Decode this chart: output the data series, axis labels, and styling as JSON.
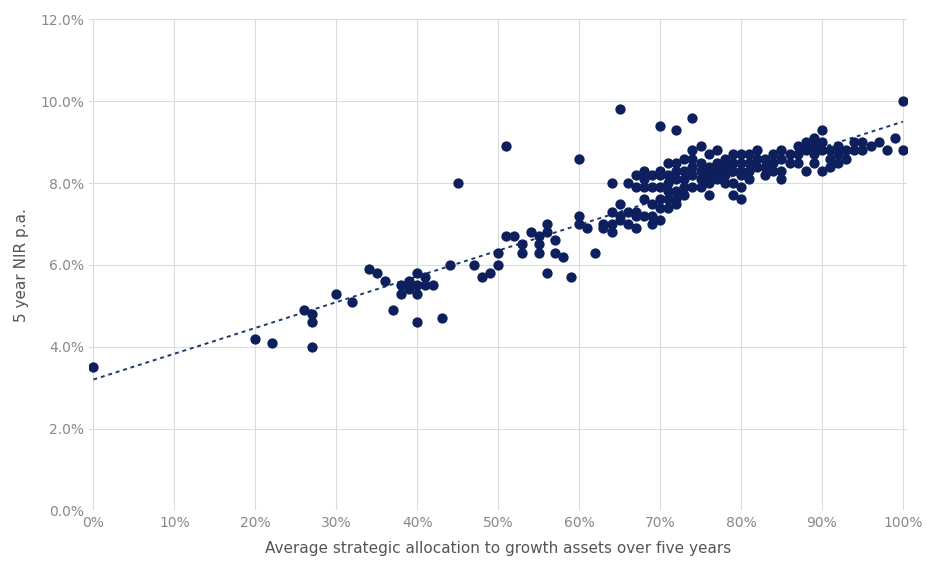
{
  "scatter_points": [
    [
      0.0,
      0.035
    ],
    [
      0.2,
      0.042
    ],
    [
      0.22,
      0.041
    ],
    [
      0.26,
      0.049
    ],
    [
      0.27,
      0.048
    ],
    [
      0.27,
      0.046
    ],
    [
      0.27,
      0.04
    ],
    [
      0.3,
      0.053
    ],
    [
      0.32,
      0.051
    ],
    [
      0.34,
      0.059
    ],
    [
      0.35,
      0.058
    ],
    [
      0.36,
      0.056
    ],
    [
      0.37,
      0.049
    ],
    [
      0.38,
      0.055
    ],
    [
      0.38,
      0.053
    ],
    [
      0.39,
      0.056
    ],
    [
      0.39,
      0.054
    ],
    [
      0.4,
      0.058
    ],
    [
      0.4,
      0.055
    ],
    [
      0.4,
      0.053
    ],
    [
      0.4,
      0.046
    ],
    [
      0.41,
      0.055
    ],
    [
      0.41,
      0.057
    ],
    [
      0.42,
      0.055
    ],
    [
      0.43,
      0.047
    ],
    [
      0.44,
      0.06
    ],
    [
      0.45,
      0.08
    ],
    [
      0.47,
      0.06
    ],
    [
      0.48,
      0.057
    ],
    [
      0.49,
      0.058
    ],
    [
      0.5,
      0.063
    ],
    [
      0.5,
      0.06
    ],
    [
      0.51,
      0.089
    ],
    [
      0.51,
      0.067
    ],
    [
      0.52,
      0.067
    ],
    [
      0.53,
      0.065
    ],
    [
      0.53,
      0.063
    ],
    [
      0.54,
      0.068
    ],
    [
      0.55,
      0.067
    ],
    [
      0.55,
      0.065
    ],
    [
      0.55,
      0.063
    ],
    [
      0.56,
      0.07
    ],
    [
      0.56,
      0.068
    ],
    [
      0.56,
      0.058
    ],
    [
      0.57,
      0.066
    ],
    [
      0.57,
      0.063
    ],
    [
      0.58,
      0.062
    ],
    [
      0.59,
      0.057
    ],
    [
      0.6,
      0.086
    ],
    [
      0.6,
      0.072
    ],
    [
      0.6,
      0.07
    ],
    [
      0.61,
      0.069
    ],
    [
      0.62,
      0.063
    ],
    [
      0.63,
      0.07
    ],
    [
      0.63,
      0.069
    ],
    [
      0.64,
      0.08
    ],
    [
      0.64,
      0.073
    ],
    [
      0.64,
      0.07
    ],
    [
      0.64,
      0.068
    ],
    [
      0.65,
      0.098
    ],
    [
      0.65,
      0.075
    ],
    [
      0.65,
      0.072
    ],
    [
      0.65,
      0.071
    ],
    [
      0.66,
      0.08
    ],
    [
      0.66,
      0.073
    ],
    [
      0.66,
      0.07
    ],
    [
      0.67,
      0.082
    ],
    [
      0.67,
      0.079
    ],
    [
      0.67,
      0.073
    ],
    [
      0.67,
      0.072
    ],
    [
      0.67,
      0.069
    ],
    [
      0.68,
      0.083
    ],
    [
      0.68,
      0.081
    ],
    [
      0.68,
      0.079
    ],
    [
      0.68,
      0.076
    ],
    [
      0.68,
      0.072
    ],
    [
      0.69,
      0.082
    ],
    [
      0.69,
      0.079
    ],
    [
      0.69,
      0.075
    ],
    [
      0.69,
      0.072
    ],
    [
      0.69,
      0.07
    ],
    [
      0.7,
      0.094
    ],
    [
      0.7,
      0.083
    ],
    [
      0.7,
      0.082
    ],
    [
      0.7,
      0.079
    ],
    [
      0.7,
      0.076
    ],
    [
      0.7,
      0.074
    ],
    [
      0.7,
      0.071
    ],
    [
      0.71,
      0.085
    ],
    [
      0.71,
      0.082
    ],
    [
      0.71,
      0.08
    ],
    [
      0.71,
      0.078
    ],
    [
      0.71,
      0.076
    ],
    [
      0.71,
      0.074
    ],
    [
      0.72,
      0.093
    ],
    [
      0.72,
      0.085
    ],
    [
      0.72,
      0.083
    ],
    [
      0.72,
      0.081
    ],
    [
      0.72,
      0.078
    ],
    [
      0.72,
      0.076
    ],
    [
      0.72,
      0.075
    ],
    [
      0.73,
      0.086
    ],
    [
      0.73,
      0.083
    ],
    [
      0.73,
      0.081
    ],
    [
      0.73,
      0.079
    ],
    [
      0.73,
      0.077
    ],
    [
      0.74,
      0.096
    ],
    [
      0.74,
      0.088
    ],
    [
      0.74,
      0.086
    ],
    [
      0.74,
      0.084
    ],
    [
      0.74,
      0.082
    ],
    [
      0.74,
      0.079
    ],
    [
      0.75,
      0.089
    ],
    [
      0.75,
      0.085
    ],
    [
      0.75,
      0.083
    ],
    [
      0.75,
      0.081
    ],
    [
      0.75,
      0.079
    ],
    [
      0.76,
      0.087
    ],
    [
      0.76,
      0.084
    ],
    [
      0.76,
      0.082
    ],
    [
      0.76,
      0.08
    ],
    [
      0.76,
      0.077
    ],
    [
      0.77,
      0.088
    ],
    [
      0.77,
      0.085
    ],
    [
      0.77,
      0.083
    ],
    [
      0.77,
      0.081
    ],
    [
      0.78,
      0.086
    ],
    [
      0.78,
      0.084
    ],
    [
      0.78,
      0.082
    ],
    [
      0.78,
      0.08
    ],
    [
      0.79,
      0.087
    ],
    [
      0.79,
      0.085
    ],
    [
      0.79,
      0.083
    ],
    [
      0.79,
      0.08
    ],
    [
      0.79,
      0.077
    ],
    [
      0.8,
      0.087
    ],
    [
      0.8,
      0.085
    ],
    [
      0.8,
      0.083
    ],
    [
      0.8,
      0.082
    ],
    [
      0.8,
      0.079
    ],
    [
      0.8,
      0.076
    ],
    [
      0.81,
      0.087
    ],
    [
      0.81,
      0.085
    ],
    [
      0.81,
      0.083
    ],
    [
      0.81,
      0.081
    ],
    [
      0.82,
      0.088
    ],
    [
      0.82,
      0.086
    ],
    [
      0.82,
      0.084
    ],
    [
      0.83,
      0.086
    ],
    [
      0.83,
      0.084
    ],
    [
      0.83,
      0.082
    ],
    [
      0.84,
      0.087
    ],
    [
      0.84,
      0.085
    ],
    [
      0.84,
      0.083
    ],
    [
      0.85,
      0.088
    ],
    [
      0.85,
      0.086
    ],
    [
      0.85,
      0.083
    ],
    [
      0.85,
      0.081
    ],
    [
      0.86,
      0.087
    ],
    [
      0.86,
      0.085
    ],
    [
      0.87,
      0.089
    ],
    [
      0.87,
      0.087
    ],
    [
      0.87,
      0.085
    ],
    [
      0.88,
      0.09
    ],
    [
      0.88,
      0.088
    ],
    [
      0.88,
      0.083
    ],
    [
      0.89,
      0.091
    ],
    [
      0.89,
      0.089
    ],
    [
      0.89,
      0.087
    ],
    [
      0.89,
      0.085
    ],
    [
      0.9,
      0.093
    ],
    [
      0.9,
      0.09
    ],
    [
      0.9,
      0.088
    ],
    [
      0.9,
      0.083
    ],
    [
      0.91,
      0.088
    ],
    [
      0.91,
      0.086
    ],
    [
      0.91,
      0.084
    ],
    [
      0.92,
      0.089
    ],
    [
      0.92,
      0.087
    ],
    [
      0.92,
      0.085
    ],
    [
      0.93,
      0.088
    ],
    [
      0.93,
      0.086
    ],
    [
      0.94,
      0.09
    ],
    [
      0.94,
      0.088
    ],
    [
      0.95,
      0.09
    ],
    [
      0.95,
      0.088
    ],
    [
      0.96,
      0.089
    ],
    [
      0.97,
      0.09
    ],
    [
      0.98,
      0.088
    ],
    [
      0.99,
      0.091
    ],
    [
      1.0,
      0.1
    ],
    [
      1.0,
      0.088
    ]
  ],
  "trend_x": [
    0.0,
    1.0
  ],
  "trend_y": [
    0.032,
    0.095
  ],
  "dot_color": "#0d1f5c",
  "trend_color": "#1a3a6b",
  "plot_bg_color": "#ffffff",
  "fig_bg_color": "#ffffff",
  "grid_color": "#d8dce0",
  "xlabel": "Average strategic allocation to growth assets over five years",
  "ylabel": "5 year NIR p.a.",
  "xlim": [
    -0.005,
    1.005
  ],
  "ylim": [
    0.0,
    0.12
  ],
  "xticks": [
    0.0,
    0.1,
    0.2,
    0.3,
    0.4,
    0.5,
    0.6,
    0.7,
    0.8,
    0.9,
    1.0
  ],
  "yticks": [
    0.0,
    0.02,
    0.04,
    0.06,
    0.08,
    0.1,
    0.12
  ],
  "dot_size": 55,
  "dot_alpha": 1.0,
  "tick_color": "#888888",
  "label_color": "#555555",
  "xlabel_fontsize": 11,
  "ylabel_fontsize": 11,
  "tick_fontsize": 10,
  "figsize": [
    9.37,
    5.7
  ],
  "dpi": 100
}
